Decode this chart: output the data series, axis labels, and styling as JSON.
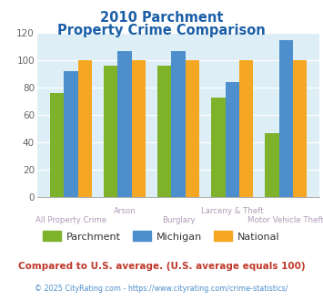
{
  "title_line1": "2010 Parchment",
  "title_line2": "Property Crime Comparison",
  "categories": [
    "All Property Crime",
    "Arson",
    "Burglary",
    "Larceny & Theft",
    "Motor Vehicle Theft"
  ],
  "parchment": [
    76,
    96,
    96,
    73,
    47
  ],
  "michigan": [
    92,
    107,
    107,
    84,
    115
  ],
  "national": [
    100,
    100,
    100,
    100,
    100
  ],
  "color_parchment": "#7db22a",
  "color_michigan": "#4d8fcc",
  "color_national": "#f5a623",
  "ylim": [
    0,
    120
  ],
  "yticks": [
    0,
    20,
    40,
    60,
    80,
    100,
    120
  ],
  "bg_color": "#ddeef6",
  "title_color": "#1a5fa8",
  "xlabel_color_even": "#b09ab8",
  "xlabel_color_odd": "#b09ab8",
  "footer_text": "Compared to U.S. average. (U.S. average equals 100)",
  "footer_color": "#c0392b",
  "copyright_text": "© 2025 CityRating.com - https://www.cityrating.com/crime-statistics/",
  "copyright_color": "#4d8fcc",
  "legend_labels": [
    "Parchment",
    "Michigan",
    "National"
  ]
}
